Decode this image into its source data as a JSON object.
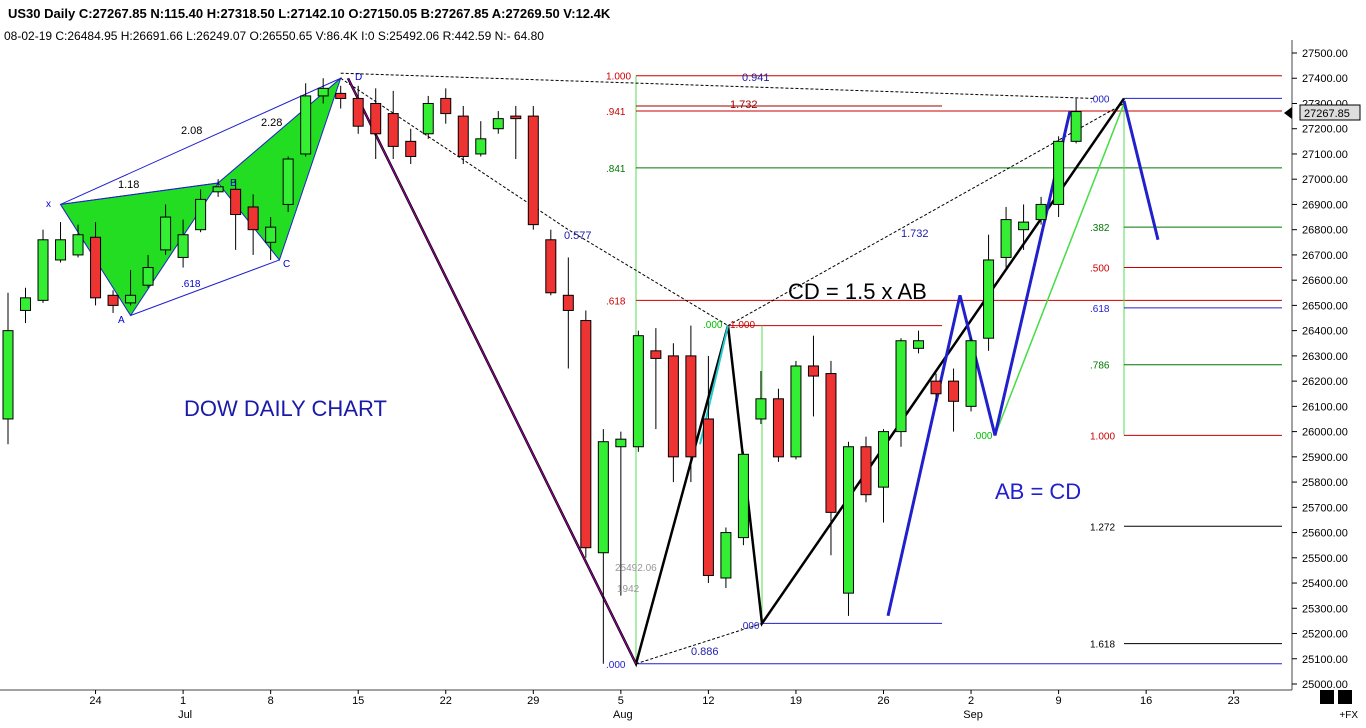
{
  "header": {
    "line1": "US30  Daily  C:27267.85  N:115.40  H:27318.50  L:27142.10  O:27150.05  B:27267.85  A:27269.50  V:12.4K",
    "line2": "08-02-19  C:26484.95  H:26691.66  L:26249.07  O:26550.65  V:86.4K  I:0  S:25492.06  R:442.59  N:- 64.80"
  },
  "price_tag": "27267.85",
  "fx_label": "+FX",
  "colors": {
    "up": "#33ee33",
    "down": "#ee3333",
    "pattern_fill": "#22dd22",
    "blue": "#2020cc",
    "dark_blue": "#1a1aa8",
    "fib_red": "#cc0000",
    "fib_green": "#007700"
  },
  "chart_data": {
    "type": "candlestick",
    "symbol": "US30",
    "timeframe": "Daily",
    "ylim": [
      25000,
      27550
    ],
    "y_ticks": [
      "27500.00",
      "27400.00",
      "27300.00",
      "27200.00",
      "27100.00",
      "27000.00",
      "26900.00",
      "26800.00",
      "26700.00",
      "26600.00",
      "26500.00",
      "26400.00",
      "26300.00",
      "26200.00",
      "26100.00",
      "26000.00",
      "25900.00",
      "25800.00",
      "25700.00",
      "25600.00",
      "25500.00",
      "25400.00",
      "25300.00",
      "25200.00",
      "25100.00",
      "25000.00"
    ],
    "x_ticks": [
      {
        "i": 5,
        "day": "24",
        "month": ""
      },
      {
        "i": 10,
        "day": "1",
        "month": "Jul"
      },
      {
        "i": 15,
        "day": "8",
        "month": ""
      },
      {
        "i": 20,
        "day": "15",
        "month": ""
      },
      {
        "i": 25,
        "day": "22",
        "month": ""
      },
      {
        "i": 30,
        "day": "29",
        "month": ""
      },
      {
        "i": 35,
        "day": "5",
        "month": "Aug"
      },
      {
        "i": 40,
        "day": "12",
        "month": ""
      },
      {
        "i": 45,
        "day": "19",
        "month": ""
      },
      {
        "i": 50,
        "day": "26",
        "month": ""
      },
      {
        "i": 55,
        "day": "2",
        "month": "Sep"
      },
      {
        "i": 60,
        "day": "9",
        "month": ""
      },
      {
        "i": 65,
        "day": "16",
        "month": ""
      },
      {
        "i": 70,
        "day": "23",
        "month": ""
      }
    ],
    "candles": [
      {
        "i": 0,
        "o": 26050,
        "h": 26550,
        "c": 26400,
        "l": 25950
      },
      {
        "i": 1,
        "o": 26480,
        "h": 26570,
        "c": 26530,
        "l": 26430
      },
      {
        "i": 2,
        "o": 26520,
        "h": 26800,
        "c": 26760,
        "l": 26510
      },
      {
        "i": 3,
        "o": 26680,
        "h": 26830,
        "c": 26760,
        "l": 26670
      },
      {
        "i": 4,
        "o": 26700,
        "h": 26820,
        "c": 26780,
        "l": 26690
      },
      {
        "i": 5,
        "o": 26770,
        "h": 26830,
        "c": 26530,
        "l": 26500
      },
      {
        "i": 6,
        "o": 26540,
        "h": 26560,
        "c": 26500,
        "l": 26470
      },
      {
        "i": 7,
        "o": 26510,
        "h": 26640,
        "c": 26540,
        "l": 26500
      },
      {
        "i": 8,
        "o": 26580,
        "h": 26700,
        "c": 26650,
        "l": 26570
      },
      {
        "i": 9,
        "o": 26720,
        "h": 26900,
        "c": 26850,
        "l": 26700
      },
      {
        "i": 10,
        "o": 26690,
        "h": 26840,
        "c": 26780,
        "l": 26650
      },
      {
        "i": 11,
        "o": 26800,
        "h": 26960,
        "c": 26920,
        "l": 26790
      },
      {
        "i": 12,
        "o": 26950,
        "h": 27000,
        "c": 26970,
        "l": 26930
      },
      {
        "i": 13,
        "o": 26960,
        "h": 27000,
        "c": 26860,
        "l": 26720
      },
      {
        "i": 14,
        "o": 26890,
        "h": 26940,
        "c": 26800,
        "l": 26700
      },
      {
        "i": 15,
        "o": 26750,
        "h": 26850,
        "c": 26810,
        "l": 26680
      },
      {
        "i": 16,
        "o": 26900,
        "h": 27090,
        "c": 27080,
        "l": 26870
      },
      {
        "i": 17,
        "o": 27100,
        "h": 27380,
        "c": 27330,
        "l": 27090
      },
      {
        "i": 18,
        "o": 27330,
        "h": 27400,
        "c": 27360,
        "l": 27300
      },
      {
        "i": 19,
        "o": 27340,
        "h": 27370,
        "c": 27320,
        "l": 27280
      },
      {
        "i": 20,
        "o": 27320,
        "h": 27370,
        "c": 27210,
        "l": 27180
      },
      {
        "i": 21,
        "o": 27300,
        "h": 27360,
        "c": 27180,
        "l": 27080
      },
      {
        "i": 22,
        "o": 27260,
        "h": 27350,
        "c": 27130,
        "l": 27080
      },
      {
        "i": 23,
        "o": 27150,
        "h": 27200,
        "c": 27090,
        "l": 27060
      },
      {
        "i": 24,
        "o": 27180,
        "h": 27330,
        "c": 27300,
        "l": 27160
      },
      {
        "i": 25,
        "o": 27320,
        "h": 27360,
        "c": 27260,
        "l": 27220
      },
      {
        "i": 26,
        "o": 27250,
        "h": 27290,
        "c": 27090,
        "l": 27060
      },
      {
        "i": 27,
        "o": 27100,
        "h": 27230,
        "c": 27160,
        "l": 27090
      },
      {
        "i": 28,
        "o": 27200,
        "h": 27270,
        "c": 27240,
        "l": 27180
      },
      {
        "i": 29,
        "o": 27250,
        "h": 27290,
        "c": 27240,
        "l": 27080
      },
      {
        "i": 30,
        "o": 27250,
        "h": 27290,
        "c": 26820,
        "l": 26800
      },
      {
        "i": 31,
        "o": 26760,
        "h": 26800,
        "c": 26550,
        "l": 26540
      },
      {
        "i": 32,
        "o": 26540,
        "h": 26690,
        "c": 26480,
        "l": 26250
      },
      {
        "i": 33,
        "o": 26440,
        "h": 26480,
        "c": 25540,
        "l": 25500
      },
      {
        "i": 34,
        "o": 25520,
        "h": 26010,
        "c": 25960,
        "l": 25080
      },
      {
        "i": 35,
        "o": 25940,
        "h": 26000,
        "c": 25970,
        "l": 25350
      },
      {
        "i": 36,
        "o": 25940,
        "h": 26400,
        "c": 26380,
        "l": 25920
      },
      {
        "i": 37,
        "o": 26320,
        "h": 26410,
        "c": 26290,
        "l": 26010
      },
      {
        "i": 38,
        "o": 26300,
        "h": 26350,
        "c": 25900,
        "l": 25800
      },
      {
        "i": 39,
        "o": 26300,
        "h": 26420,
        "c": 25900,
        "l": 25800
      },
      {
        "i": 40,
        "o": 26050,
        "h": 26300,
        "c": 25430,
        "l": 25400
      },
      {
        "i": 41,
        "o": 25420,
        "h": 25620,
        "c": 25600,
        "l": 25380
      },
      {
        "i": 42,
        "o": 25580,
        "h": 25920,
        "c": 25910,
        "l": 25550
      },
      {
        "i": 43,
        "o": 26050,
        "h": 26240,
        "c": 26130,
        "l": 26030
      },
      {
        "i": 44,
        "o": 26130,
        "h": 26170,
        "c": 25900,
        "l": 25880
      },
      {
        "i": 45,
        "o": 25900,
        "h": 26280,
        "c": 26260,
        "l": 25890
      },
      {
        "i": 46,
        "o": 26260,
        "h": 26380,
        "c": 26220,
        "l": 26060
      },
      {
        "i": 47,
        "o": 26230,
        "h": 26280,
        "c": 25680,
        "l": 25510
      },
      {
        "i": 48,
        "o": 25360,
        "h": 25960,
        "c": 25940,
        "l": 25270
      },
      {
        "i": 49,
        "o": 25940,
        "h": 25980,
        "c": 25750,
        "l": 25720
      },
      {
        "i": 50,
        "o": 25780,
        "h": 26010,
        "c": 26000,
        "l": 25640
      },
      {
        "i": 51,
        "o": 26000,
        "h": 26370,
        "c": 26360,
        "l": 25940
      },
      {
        "i": 52,
        "o": 26330,
        "h": 26400,
        "c": 26360,
        "l": 26310
      },
      {
        "i": 53,
        "o": 26200,
        "h": 26230,
        "c": 26150,
        "l": 26120
      },
      {
        "i": 54,
        "o": 26200,
        "h": 26250,
        "c": 26120,
        "l": 26000
      },
      {
        "i": 55,
        "o": 26100,
        "h": 26370,
        "c": 26360,
        "l": 26080
      },
      {
        "i": 56,
        "o": 26370,
        "h": 26780,
        "c": 26680,
        "l": 26320
      },
      {
        "i": 57,
        "o": 26690,
        "h": 26890,
        "c": 26840,
        "l": 26650
      },
      {
        "i": 58,
        "o": 26800,
        "h": 26900,
        "c": 26830,
        "l": 26720
      },
      {
        "i": 59,
        "o": 26840,
        "h": 26930,
        "c": 26900,
        "l": 26820
      },
      {
        "i": 60,
        "o": 26900,
        "h": 27170,
        "c": 27150,
        "l": 26850
      },
      {
        "i": 61,
        "o": 27150,
        "h": 27320,
        "c": 27268,
        "l": 27142
      }
    ],
    "annotations": {
      "title_text": "DOW DAILY CHART",
      "cd_text": "CD = 1.5 x AB",
      "abcd_text": "AB = CD",
      "harmonic_labels": {
        "x": "x",
        "a": "A",
        "b": "B",
        "c": "C",
        "d": "D"
      },
      "harmonic_ratios": [
        "2.08",
        "1.18",
        "2.28",
        ".618"
      ],
      "fib_left": [
        {
          "label": "1.000",
          "price": 27410,
          "color": "red"
        },
        {
          "label": ".941",
          "price": 27270,
          "color": "red"
        },
        {
          "label": ".841",
          "price": 27045,
          "color": "green"
        },
        {
          "label": ".618",
          "price": 26520,
          "color": "red"
        },
        {
          "label": ".000",
          "price": 25080,
          "color": "blue"
        }
      ],
      "fib_right": [
        {
          "label": ".000",
          "price": 27320,
          "color": "blue"
        },
        {
          "label": ".382",
          "price": 26810,
          "color": "green"
        },
        {
          "label": ".500",
          "price": 26650,
          "color": "red"
        },
        {
          "label": ".618",
          "price": 26490,
          "color": "blue"
        },
        {
          "label": ".786",
          "price": 26265,
          "color": "green"
        },
        {
          "label": "1.000",
          "price": 25985,
          "color": "red"
        },
        {
          "label": "1.272",
          "price": 25625,
          "color": "black"
        },
        {
          "label": "1.618",
          "price": 25160,
          "color": "black"
        }
      ],
      "middle_labels": {
        "r0941": "0.941",
        "r1732a": "1.732",
        "r1732b": "1.732",
        "r0577": "0.577",
        "r0886": "0.886",
        "m000": ".000",
        "m1000": "1.000",
        "m000b": ".000",
        "m000c": ".000",
        "side1": "25492.06",
        "side2": "1942"
      }
    }
  }
}
